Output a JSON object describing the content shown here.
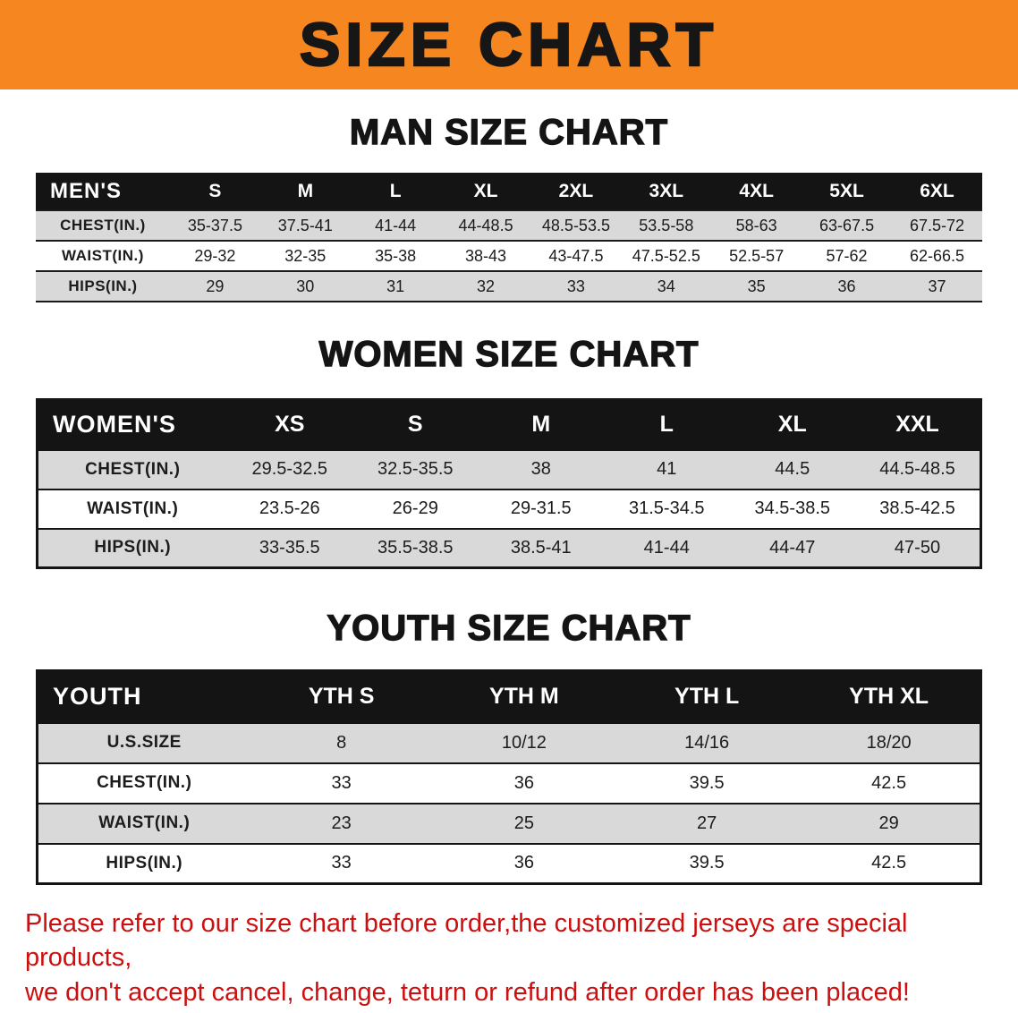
{
  "banner": {
    "title": "SIZE CHART"
  },
  "colors": {
    "banner_bg": "#F6861F",
    "header_bg": "#141414",
    "row_alt": "#D9D9D9",
    "disclaimer_text": "#CC1010"
  },
  "men": {
    "heading": "MAN SIZE CHART",
    "header": [
      "MEN'S",
      "S",
      "M",
      "L",
      "XL",
      "2XL",
      "3XL",
      "4XL",
      "5XL",
      "6XL"
    ],
    "rows": [
      [
        "CHEST(IN.)",
        "35-37.5",
        "37.5-41",
        "41-44",
        "44-48.5",
        "48.5-53.5",
        "53.5-58",
        "58-63",
        "63-67.5",
        "67.5-72"
      ],
      [
        "WAIST(IN.)",
        "29-32",
        "32-35",
        "35-38",
        "38-43",
        "43-47.5",
        "47.5-52.5",
        "52.5-57",
        "57-62",
        "62-66.5"
      ],
      [
        "HIPS(IN.)",
        "29",
        "30",
        "31",
        "32",
        "33",
        "34",
        "35",
        "36",
        "37"
      ]
    ]
  },
  "women": {
    "heading": "WOMEN SIZE CHART",
    "header": [
      "WOMEN'S",
      "XS",
      "S",
      "M",
      "L",
      "XL",
      "XXL"
    ],
    "rows": [
      [
        "CHEST(IN.)",
        "29.5-32.5",
        "32.5-35.5",
        "38",
        "41",
        "44.5",
        "44.5-48.5"
      ],
      [
        "WAIST(IN.)",
        "23.5-26",
        "26-29",
        "29-31.5",
        "31.5-34.5",
        "34.5-38.5",
        "38.5-42.5"
      ],
      [
        "HIPS(IN.)",
        "33-35.5",
        "35.5-38.5",
        "38.5-41",
        "41-44",
        "44-47",
        "47-50"
      ]
    ]
  },
  "youth": {
    "heading": "YOUTH SIZE CHART",
    "header": [
      "YOUTH",
      "YTH S",
      "YTH M",
      "YTH L",
      "YTH XL"
    ],
    "rows": [
      [
        "U.S.SIZE",
        "8",
        "10/12",
        "14/16",
        "18/20"
      ],
      [
        "CHEST(IN.)",
        "33",
        "36",
        "39.5",
        "42.5"
      ],
      [
        "WAIST(IN.)",
        "23",
        "25",
        "27",
        "29"
      ],
      [
        "HIPS(IN.)",
        "33",
        "36",
        "39.5",
        "42.5"
      ]
    ]
  },
  "disclaimer": {
    "line1": "Please refer to our size chart before order,the customized jerseys are special products,",
    "line2": "we don't accept cancel, change, teturn or refund after order has been placed!"
  }
}
